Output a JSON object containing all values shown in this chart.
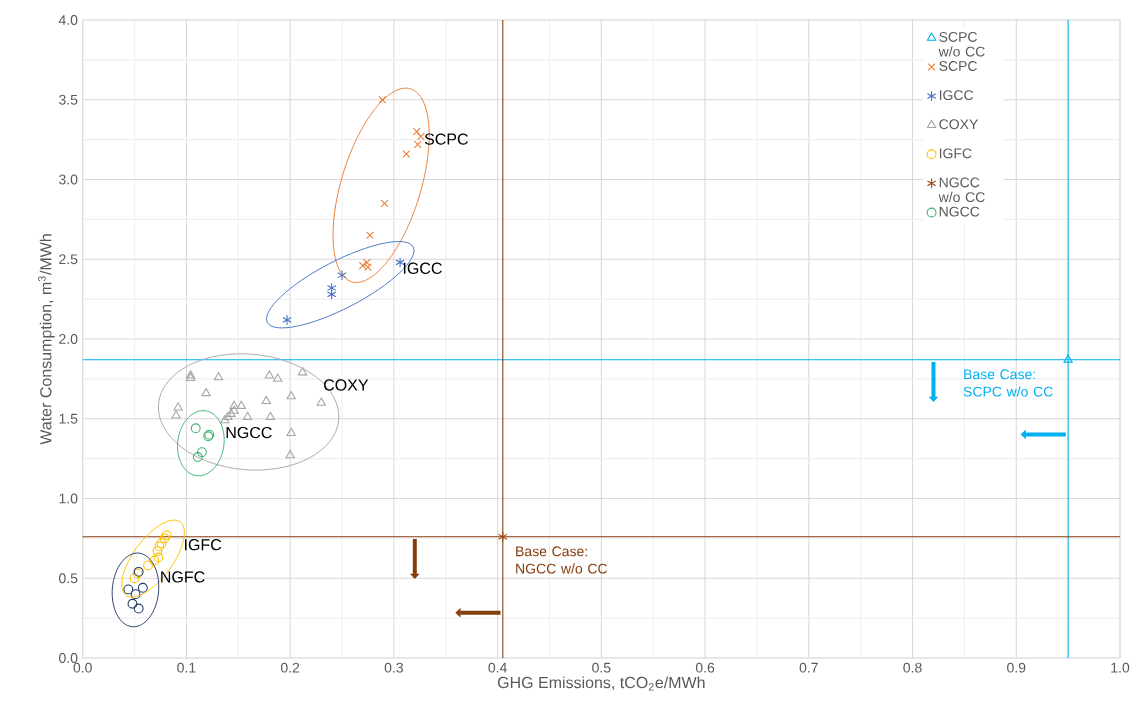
{
  "chart_data": {
    "type": "scatter",
    "xlabel": "GHG Emissions, tCO$_{2}$e/MWh",
    "ylabel": "Water Consumption, m$^{3}$/MWh",
    "xlim": [
      0,
      1
    ],
    "ylim": [
      0,
      4
    ],
    "xticks": [
      {
        "value": 0,
        "label": "0.0"
      },
      0.1,
      0.2,
      0.3,
      0.4,
      0.5,
      0.6,
      0.7,
      0.8,
      0.9,
      {
        "value": 1,
        "label": "1.0"
      }
    ],
    "yticks": [
      {
        "value": 0,
        "label": "0.0"
      },
      0.5,
      {
        "value": 1,
        "label": "1.0"
      },
      1.5,
      {
        "value": 2,
        "label": "2.0"
      },
      2.5,
      {
        "value": 3,
        "label": "3.0"
      },
      3.5,
      {
        "value": 4,
        "label": "4.0"
      }
    ],
    "grid": true,
    "legend": "top right",
    "series": [
      {
        "name": "SCPC w/o CC",
        "color": "#00b0f0",
        "marker": "triangle",
        "x": [
          0.95
        ],
        "values": [
          1.87
        ]
      },
      {
        "name": "SCPC",
        "color": "#ed7d31",
        "marker": "x",
        "x": [
          0.289,
          0.322,
          0.326,
          0.323,
          0.312,
          0.291,
          0.277,
          0.27,
          0.274,
          0.275
        ],
        "values": [
          3.5,
          3.3,
          3.27,
          3.22,
          3.16,
          2.85,
          2.65,
          2.46,
          2.48,
          2.45
        ]
      },
      {
        "name": "IGCC",
        "color": "#4472c4",
        "marker": "cross",
        "x": [
          0.306,
          0.25,
          0.24,
          0.24,
          0.197
        ],
        "values": [
          2.48,
          2.4,
          2.32,
          2.28,
          2.12
        ]
      },
      {
        "name": "COXY",
        "color": "#a5a5a5",
        "marker": "triangle",
        "x": [
          0.104,
          0.104,
          0.131,
          0.18,
          0.188,
          0.212,
          0.119,
          0.201,
          0.177,
          0.23,
          0.092,
          0.09,
          0.146,
          0.153,
          0.159,
          0.181,
          0.137,
          0.14,
          0.143,
          0.146,
          0.201,
          0.2
        ],
        "values": [
          1.755,
          1.77,
          1.76,
          1.77,
          1.75,
          1.79,
          1.66,
          1.64,
          1.61,
          1.6,
          1.57,
          1.52,
          1.58,
          1.58,
          1.51,
          1.51,
          1.49,
          1.51,
          1.53,
          1.55,
          1.41,
          1.27
        ]
      },
      {
        "name": "IGFC",
        "color": "#ffc000",
        "marker": "circle",
        "x": [
          0.081,
          0.079,
          0.076,
          0.074,
          0.072,
          0.073,
          0.069,
          0.063,
          0.053,
          0.05
        ],
        "values": [
          0.77,
          0.75,
          0.72,
          0.7,
          0.67,
          0.63,
          0.61,
          0.58,
          0.53,
          0.5
        ]
      },
      {
        "name": "NGCC w/o CC",
        "color": "#9e480e",
        "marker": "cross",
        "x": [
          0.405
        ],
        "values": [
          0.76
        ]
      },
      {
        "name": "NGCC",
        "color": "#3cb371",
        "marker": "circle",
        "x": [
          0.109,
          0.121,
          0.122,
          0.115,
          0.111
        ],
        "values": [
          1.44,
          1.39,
          1.4,
          1.29,
          1.26
        ]
      },
      {
        "color": "#203864",
        "marker": "circle",
        "x": [
          0.054,
          0.058,
          0.044,
          0.051,
          0.048,
          0.054
        ],
        "values": [
          0.54,
          0.44,
          0.43,
          0.4,
          0.34,
          0.31
        ]
      }
    ],
    "ref_lines": [
      {
        "axis": "x",
        "value": 0.95,
        "color": "#00b0f0",
        "label": "Base Case: SCPC w/o CC"
      },
      {
        "axis": "y",
        "value": 1.87,
        "color": "#00b0f0"
      },
      {
        "axis": "x",
        "value": 0.405,
        "color": "#843c0c",
        "label": "Base Case: NGCC w/o CC"
      },
      {
        "axis": "y",
        "value": 0.76,
        "color": "#843c0c"
      }
    ],
    "annotations": [
      "SCPC",
      "IGCC",
      "COXY",
      "IGFC",
      "NGCC",
      "NGFC"
    ]
  }
}
